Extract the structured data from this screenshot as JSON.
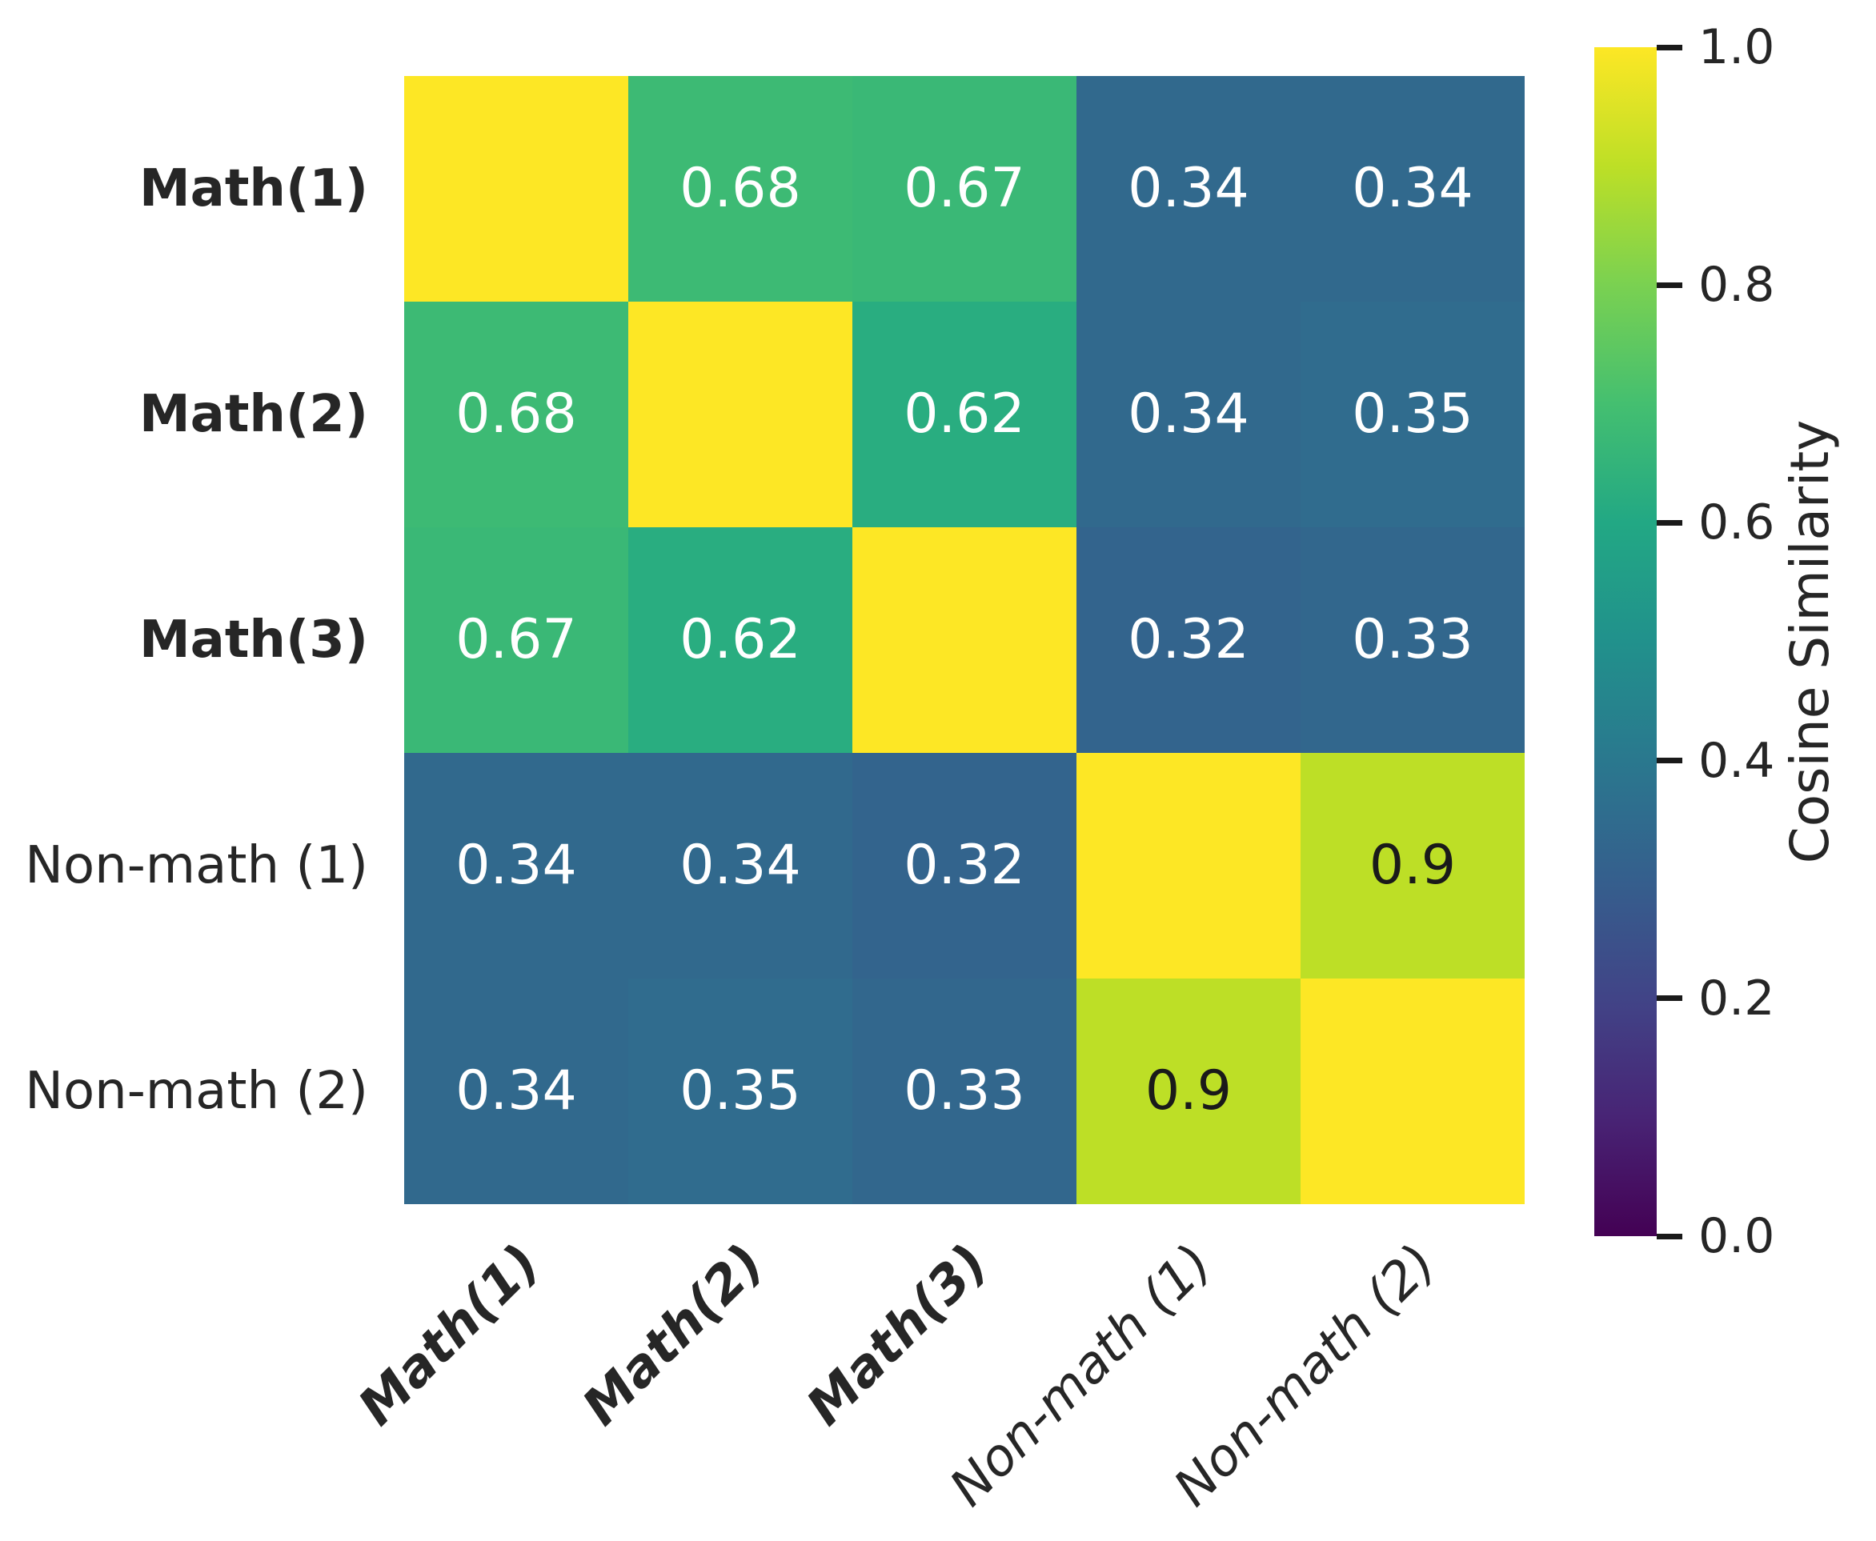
{
  "chart_data": {
    "type": "heatmap",
    "title": "",
    "categories": [
      "Math(1)",
      "Math(2)",
      "Math(3)",
      "Non-math (1)",
      "Non-math (2)"
    ],
    "categories_emphasized": [
      true,
      true,
      true,
      false,
      false
    ],
    "matrix": [
      [
        1.0,
        0.68,
        0.67,
        0.34,
        0.34
      ],
      [
        0.68,
        1.0,
        0.62,
        0.34,
        0.35
      ],
      [
        0.67,
        0.62,
        1.0,
        0.32,
        0.33
      ],
      [
        0.34,
        0.34,
        0.32,
        1.0,
        0.9
      ],
      [
        0.34,
        0.35,
        0.33,
        0.9,
        1.0
      ]
    ],
    "annotations": [
      [
        "",
        "0.68",
        "0.67",
        "0.34",
        "0.34"
      ],
      [
        "0.68",
        "",
        "0.62",
        "0.34",
        "0.35"
      ],
      [
        "0.67",
        "0.62",
        "",
        "0.32",
        "0.33"
      ],
      [
        "0.34",
        "0.34",
        "0.32",
        "",
        "0.9"
      ],
      [
        "0.34",
        "0.35",
        "0.33",
        "0.9",
        ""
      ]
    ],
    "vmin": 0.0,
    "vmax": 1.0,
    "grid": false,
    "colormap": {
      "name": "viridis",
      "stops": [
        [
          0.0,
          "#440154"
        ],
        [
          0.1,
          "#482475"
        ],
        [
          0.2,
          "#414487"
        ],
        [
          0.3,
          "#355f8d"
        ],
        [
          0.4,
          "#2a788e"
        ],
        [
          0.5,
          "#21918c"
        ],
        [
          0.6,
          "#22a884"
        ],
        [
          0.7,
          "#44bf70"
        ],
        [
          0.8,
          "#7ad151"
        ],
        [
          0.9,
          "#bddf26"
        ],
        [
          1.0,
          "#fde725"
        ]
      ]
    },
    "colorbar": {
      "label": "Cosine Similarity",
      "position": "right",
      "tick_labels": [
        "1.0",
        "0.8",
        "0.6",
        "0.4",
        "0.2",
        "0.0"
      ],
      "tick_values": [
        1.0,
        0.8,
        0.6,
        0.4,
        0.2,
        0.0
      ]
    },
    "text_colors": {
      "annotation_light": "#ffffff",
      "annotation_dark": "#1a1a1a",
      "dark_threshold": 0.8,
      "axis_tick": "#262626"
    },
    "background": "#ffffff"
  }
}
